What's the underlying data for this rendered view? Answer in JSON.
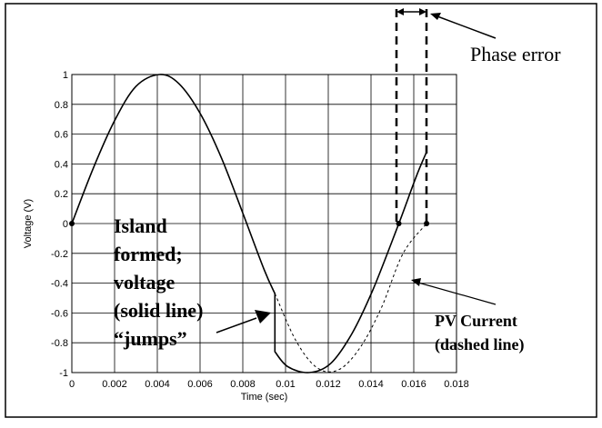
{
  "chart_data": {
    "type": "line",
    "title": "",
    "xlabel": "Time (sec)",
    "ylabel": "Voltage (V)",
    "xlim": [
      0,
      0.018
    ],
    "ylim": [
      -1,
      1
    ],
    "grid": true,
    "x_ticks": [
      "0",
      "0.002",
      "0.004",
      "0.006",
      "0.008",
      "0.01",
      "0.012",
      "0.014",
      "0.016",
      "0.018"
    ],
    "y_ticks": [
      "1",
      "0.8",
      "0.6",
      "0.4",
      "0.2",
      "0",
      "-0.2",
      "-0.4",
      "-0.6",
      "-0.8",
      "-1"
    ],
    "series": [
      {
        "style": "solid",
        "x": [
          0,
          0.001,
          0.002,
          0.003,
          0.0041,
          0.005,
          0.006,
          0.007,
          0.008,
          0.009,
          0.0095,
          0.0095,
          0.0101,
          0.0111,
          0.0121,
          0.0131,
          0.0141,
          0.0153,
          0.0161,
          0.0166
        ],
        "y": [
          0,
          0.37,
          0.69,
          0.92,
          1.0,
          0.94,
          0.74,
          0.44,
          0.07,
          -0.31,
          -0.47,
          -0.86,
          -0.96,
          -1.0,
          -0.94,
          -0.74,
          -0.44,
          0.0,
          0.31,
          0.48
        ]
      },
      {
        "style": "dashed",
        "x": [
          0.0095,
          0.0105,
          0.0115,
          0.0125,
          0.0135,
          0.0145,
          0.0155,
          0.0166
        ],
        "y": [
          -0.47,
          -0.79,
          -0.97,
          -0.98,
          -0.83,
          -0.56,
          -0.2,
          0.0
        ]
      }
    ],
    "markers": [
      {
        "x": 0,
        "y": 0
      },
      {
        "x": 0.0153,
        "y": 0
      },
      {
        "x": 0.0166,
        "y": 0
      }
    ],
    "annotations": {
      "island_lines": [
        "Island",
        "formed;",
        "voltage",
        "(solid line)",
        "“jumps”"
      ],
      "phase_error": "Phase error",
      "pv_current_lines": [
        "PV Current",
        "(dashed line)"
      ]
    }
  }
}
